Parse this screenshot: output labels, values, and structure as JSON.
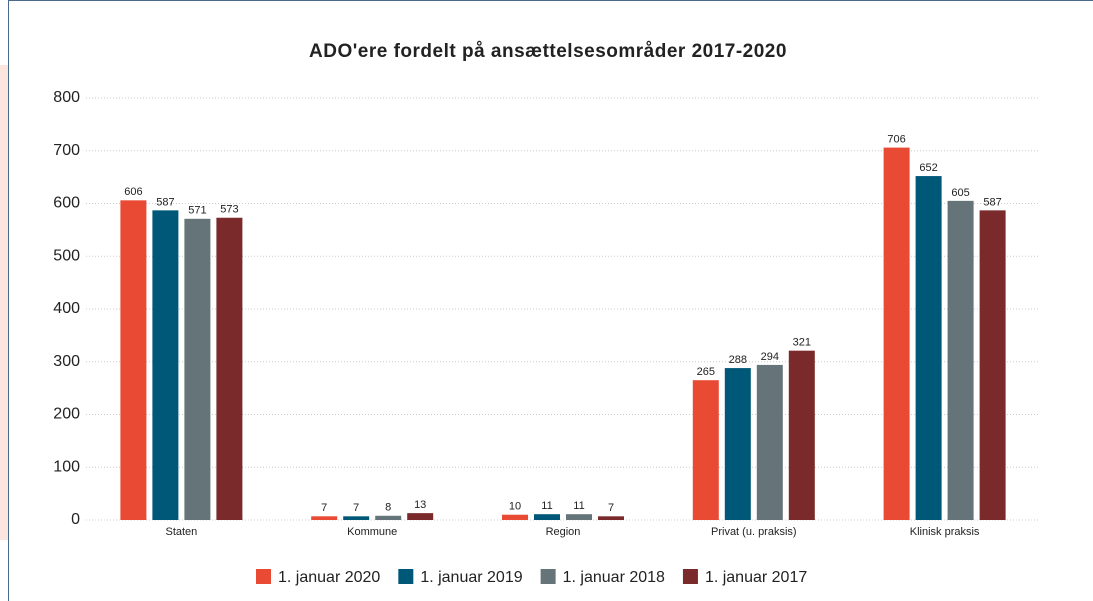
{
  "chart_data": {
    "type": "bar",
    "title": "ADO'ere fordelt på ansættelsesområder 2017-2020",
    "categories": [
      "Staten",
      "Kommune",
      "Region",
      "Privat (u. praksis)",
      "Klinisk praksis"
    ],
    "series": [
      {
        "name": "1. januar 2020",
        "color": "#e84a33",
        "values": [
          606,
          7,
          10,
          265,
          706
        ]
      },
      {
        "name": "1. januar 2019",
        "color": "#005878",
        "values": [
          587,
          7,
          11,
          288,
          652
        ]
      },
      {
        "name": "1. januar 2018",
        "color": "#657478",
        "values": [
          571,
          8,
          11,
          294,
          605
        ]
      },
      {
        "name": "1. januar 2017",
        "color": "#7a2a2a",
        "values": [
          573,
          13,
          7,
          321,
          587
        ]
      }
    ],
    "ylim": [
      0,
      800
    ],
    "yticks": [
      0,
      100,
      200,
      300,
      400,
      500,
      600,
      700,
      800
    ],
    "grid": true
  }
}
